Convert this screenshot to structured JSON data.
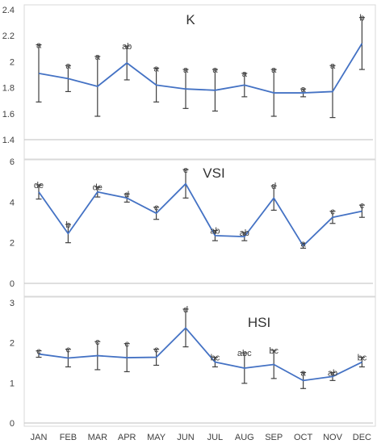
{
  "chart_data": [
    {
      "type": "line",
      "title": "K",
      "categories": [
        "JAN",
        "FEB",
        "MAR",
        "APR",
        "MAY",
        "JUN",
        "JUL",
        "AUG",
        "SEP",
        "OCT",
        "NOV",
        "DEC"
      ],
      "values": [
        1.91,
        1.87,
        1.81,
        1.99,
        1.82,
        1.79,
        1.78,
        1.82,
        1.76,
        1.76,
        1.77,
        2.14
      ],
      "errors": [
        0.22,
        0.1,
        0.23,
        0.13,
        0.13,
        0.15,
        0.16,
        0.09,
        0.18,
        0.03,
        0.2,
        0.2
      ],
      "labels": [
        "a",
        "a",
        "a",
        "ab",
        "a",
        "a",
        "a",
        "a",
        "a",
        "a",
        "a",
        "b"
      ],
      "ylim": [
        1.4,
        2.4
      ],
      "yticks": [
        "1.4",
        "1.6",
        "1.8",
        "2",
        "2.2",
        "2.4"
      ],
      "color": "#4472C4"
    },
    {
      "type": "line",
      "title": "VSI",
      "categories": [
        "JAN",
        "FEB",
        "MAR",
        "APR",
        "MAY",
        "JUN",
        "JUL",
        "AUG",
        "SEP",
        "OCT",
        "NOV",
        "DEC"
      ],
      "values": [
        4.5,
        2.45,
        4.5,
        4.2,
        3.45,
        4.9,
        2.35,
        2.3,
        4.2,
        1.85,
        3.25,
        3.55
      ],
      "errors": [
        0.35,
        0.45,
        0.25,
        0.2,
        0.3,
        0.7,
        0.25,
        0.2,
        0.6,
        0.12,
        0.3,
        0.3
      ],
      "labels": [
        "de",
        "b",
        "de",
        "d",
        "c",
        "e",
        "ab",
        "ab",
        "d",
        "a",
        "c",
        "c"
      ],
      "ylim": [
        0,
        6
      ],
      "yticks": [
        "0",
        "2",
        "4",
        "6"
      ],
      "color": "#4472C4"
    },
    {
      "type": "line",
      "title": "HSI",
      "categories": [
        "JAN",
        "FEB",
        "MAR",
        "APR",
        "MAY",
        "JUN",
        "JUL",
        "AUG",
        "SEP",
        "OCT",
        "NOV",
        "DEC"
      ],
      "values": [
        1.72,
        1.62,
        1.68,
        1.63,
        1.64,
        2.37,
        1.52,
        1.37,
        1.46,
        1.06,
        1.16,
        1.52
      ],
      "errors": [
        0.08,
        0.22,
        0.35,
        0.35,
        0.2,
        0.47,
        0.12,
        0.38,
        0.35,
        0.2,
        0.1,
        0.12
      ],
      "labels": [
        "c",
        "c",
        "c",
        "c",
        "c",
        "d",
        "bc",
        "abc",
        "bc",
        "a",
        "ab",
        "bc"
      ],
      "ylim": [
        0,
        3
      ],
      "yticks": [
        "0",
        "1",
        "2",
        "3"
      ],
      "color": "#4472C4"
    }
  ]
}
